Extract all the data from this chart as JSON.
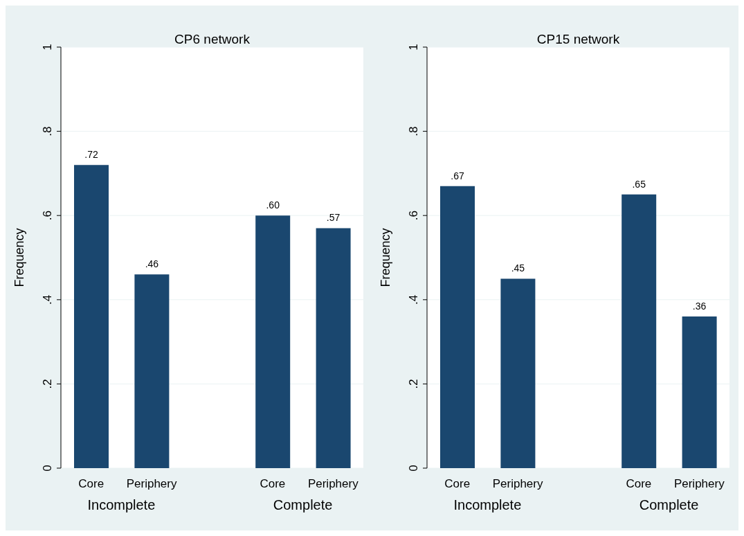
{
  "chart_data": [
    {
      "type": "bar",
      "title": "CP6 network",
      "ylabel": "Frequency",
      "categories": [
        "Core",
        "Periphery",
        null,
        "Core",
        "Periphery"
      ],
      "values": [
        0.72,
        0.46,
        null,
        0.6,
        0.57
      ],
      "value_labels": [
        ".72",
        ".46",
        null,
        ".60",
        ".57"
      ],
      "color": "#1a476f",
      "ylim": [
        0,
        1
      ],
      "yticks": [
        {
          "value": 0,
          "label": "0"
        },
        {
          "value": 0.2,
          "label": ".2"
        },
        {
          "value": 0.4,
          "label": ".4"
        },
        {
          "value": 0.6,
          "label": ".6"
        },
        {
          "value": 0.8,
          "label": ".8"
        },
        {
          "value": 1,
          "label": "1"
        }
      ],
      "grid": "y",
      "annotations": [
        "Incomplete",
        "Complete"
      ]
    },
    {
      "type": "bar",
      "title": "CP15 network",
      "ylabel": "Frequency",
      "categories": [
        "Core",
        "Periphery",
        null,
        "Core",
        "Periphery"
      ],
      "values": [
        0.67,
        0.45,
        null,
        0.65,
        0.36
      ],
      "value_labels": [
        ".67",
        ".45",
        null,
        ".65",
        ".36"
      ],
      "color": "#1a476f",
      "ylim": [
        0,
        1
      ],
      "yticks": [
        {
          "value": 0,
          "label": "0"
        },
        {
          "value": 0.2,
          "label": ".2"
        },
        {
          "value": 0.4,
          "label": ".4"
        },
        {
          "value": 0.6,
          "label": ".6"
        },
        {
          "value": 0.8,
          "label": ".8"
        },
        {
          "value": 1,
          "label": "1"
        }
      ],
      "grid": "y",
      "annotations": [
        "Incomplete",
        "Complete"
      ]
    }
  ]
}
